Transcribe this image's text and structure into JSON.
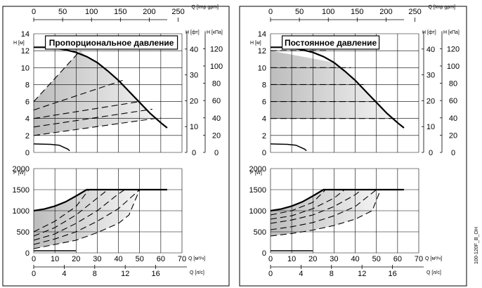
{
  "figure_code": "100-120F_B_OH",
  "units": {
    "h_m": "H [м]",
    "h_ft": "H [фт]",
    "h_kpa": "H [кПа]",
    "q_imp": "Q [Imp gpm]",
    "q_m3h": "Q [м³/ч]",
    "q_ls": "Q [л/с]",
    "p_w": "P [W]"
  },
  "chart_data": [
    {
      "type": "line",
      "title": "Пропорциональное давление",
      "head_axis": {
        "ylabel": "H [м]",
        "ylim": [
          0,
          14
        ],
        "yticks": [
          0,
          2,
          4,
          6,
          8,
          10,
          12,
          14
        ],
        "ft_ticks": [
          0,
          10,
          20,
          30,
          40
        ],
        "kpa_ticks": [
          0,
          20,
          40,
          60,
          80,
          100,
          120
        ],
        "imp_ticks": [
          0,
          50,
          100,
          150,
          200,
          250
        ]
      },
      "power_axis": {
        "ylabel": "P [W]",
        "ylim": [
          0,
          2000
        ],
        "yticks": [
          0,
          500,
          1000,
          1500,
          2000
        ]
      },
      "xlabel": "Q [м³/ч]",
      "xlim": [
        0,
        70
      ],
      "xticks": [
        0,
        10,
        20,
        30,
        40,
        50,
        60,
        70
      ],
      "x2label": "Q [л/с]",
      "x2ticks": [
        0,
        4,
        8,
        12,
        16
      ],
      "grid": true,
      "head_series": [
        {
          "x": [
            0,
            5,
            10,
            15,
            20,
            25,
            30,
            35,
            40,
            45,
            50,
            55,
            60,
            63
          ],
          "y": [
            12.4,
            12.4,
            12.3,
            12.1,
            11.8,
            11.3,
            10.6,
            9.6,
            8.5,
            7.2,
            5.9,
            4.6,
            3.5,
            2.9
          ]
        },
        {
          "x": [
            0,
            22
          ],
          "y": [
            6,
            12
          ]
        },
        {
          "x": [
            0,
            42
          ],
          "y": [
            5,
            8.5
          ]
        },
        {
          "x": [
            0,
            50
          ],
          "y": [
            4,
            6
          ]
        },
        {
          "x": [
            0,
            56
          ],
          "y": [
            3,
            5.1
          ]
        },
        {
          "x": [
            0,
            60
          ],
          "y": [
            2,
            4.1
          ]
        },
        {
          "x": [
            0,
            8,
            12,
            16,
            17
          ],
          "y": [
            1,
            0.95,
            0.85,
            0.4,
            0.2
          ]
        }
      ],
      "power_series": [
        {
          "x": [
            0,
            5,
            10,
            15,
            20,
            25,
            40,
            50,
            60,
            63
          ],
          "y": [
            1000,
            1040,
            1110,
            1210,
            1350,
            1500,
            1500,
            1500,
            1500,
            1500
          ]
        },
        {
          "x": [
            0,
            10,
            20,
            26
          ],
          "y": [
            500,
            750,
            1100,
            1500
          ]
        },
        {
          "x": [
            0,
            10,
            20,
            30,
            35
          ],
          "y": [
            400,
            600,
            900,
            1300,
            1500
          ]
        },
        {
          "x": [
            0,
            10,
            20,
            30,
            40,
            43
          ],
          "y": [
            300,
            450,
            700,
            1000,
            1400,
            1500
          ]
        },
        {
          "x": [
            0,
            10,
            20,
            30,
            40,
            50
          ],
          "y": [
            200,
            330,
            500,
            750,
            1050,
            1500
          ]
        },
        {
          "x": [
            0,
            10,
            20,
            30,
            40,
            45,
            50
          ],
          "y": [
            100,
            200,
            300,
            480,
            700,
            900,
            1500
          ]
        },
        {
          "x": [
            0,
            20
          ],
          "y": [
            50,
            50
          ]
        }
      ]
    },
    {
      "type": "line",
      "title": "Постоянное давление",
      "head_axis": {
        "ylabel": "H [м]",
        "ylim": [
          0,
          14
        ],
        "yticks": [
          0,
          2,
          4,
          6,
          8,
          10,
          12,
          14
        ],
        "ft_ticks": [
          0,
          10,
          20,
          30,
          40
        ],
        "kpa_ticks": [
          0,
          20,
          40,
          60,
          80,
          100,
          120
        ],
        "imp_ticks": [
          0,
          50,
          100,
          150,
          200,
          250
        ]
      },
      "power_axis": {
        "ylabel": "P [W]",
        "ylim": [
          0,
          2000
        ],
        "yticks": [
          0,
          500,
          1000,
          1500,
          2000
        ]
      },
      "xlabel": "Q [м³/ч]",
      "xlim": [
        0,
        70
      ],
      "xticks": [
        0,
        10,
        20,
        30,
        40,
        50,
        60,
        70
      ],
      "x2label": "Q [л/с]",
      "x2ticks": [
        0,
        4,
        8,
        12,
        16
      ],
      "grid": true,
      "head_series": [
        {
          "x": [
            0,
            5,
            10,
            15,
            20,
            25,
            30,
            35,
            40,
            45,
            50,
            55,
            60,
            63
          ],
          "y": [
            12.4,
            12.4,
            12.3,
            12.1,
            11.8,
            11.3,
            10.6,
            9.6,
            8.5,
            7.2,
            5.9,
            4.6,
            3.5,
            2.9
          ]
        },
        {
          "x": [
            0,
            28
          ],
          "y": [
            12,
            12
          ]
        },
        {
          "x": [
            0,
            38
          ],
          "y": [
            10,
            10
          ]
        },
        {
          "x": [
            0,
            44
          ],
          "y": [
            8,
            8
          ]
        },
        {
          "x": [
            0,
            52
          ],
          "y": [
            6,
            6
          ]
        },
        {
          "x": [
            0,
            59
          ],
          "y": [
            4,
            4
          ]
        },
        {
          "x": [
            0,
            8,
            12,
            16,
            17
          ],
          "y": [
            1,
            0.95,
            0.85,
            0.4,
            0.2
          ]
        }
      ],
      "power_series": [
        {
          "x": [
            0,
            5,
            10,
            15,
            20,
            25,
            40,
            50,
            60,
            63
          ],
          "y": [
            1000,
            1040,
            1110,
            1210,
            1350,
            1500,
            1500,
            1500,
            1500,
            1500
          ]
        },
        {
          "x": [
            0,
            10,
            20,
            26
          ],
          "y": [
            900,
            1000,
            1200,
            1500
          ]
        },
        {
          "x": [
            0,
            10,
            20,
            30,
            35
          ],
          "y": [
            800,
            880,
            1050,
            1300,
            1500
          ]
        },
        {
          "x": [
            0,
            10,
            20,
            30,
            40,
            43
          ],
          "y": [
            700,
            780,
            900,
            1100,
            1380,
            1500
          ]
        },
        {
          "x": [
            0,
            10,
            20,
            30,
            40,
            50
          ],
          "y": [
            550,
            620,
            720,
            880,
            1100,
            1500
          ]
        },
        {
          "x": [
            0,
            10,
            20,
            30,
            40,
            48,
            52
          ],
          "y": [
            400,
            460,
            540,
            650,
            800,
            1000,
            1500
          ]
        },
        {
          "x": [
            0,
            20
          ],
          "y": [
            50,
            50
          ]
        }
      ]
    }
  ]
}
